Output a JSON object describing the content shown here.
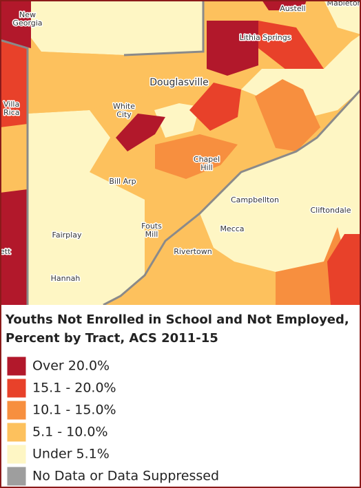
{
  "map": {
    "places": [
      {
        "lines": [
          "New",
          "Georgia"
        ]
      },
      {
        "lines": [
          "Austell"
        ]
      },
      {
        "lines": [
          "Mableton"
        ]
      },
      {
        "lines": [
          "Lithia Springs"
        ]
      },
      {
        "lines": [
          "Villa",
          "Rica"
        ]
      },
      {
        "lines": [
          "Douglasville"
        ]
      },
      {
        "lines": [
          "White",
          "City"
        ]
      },
      {
        "lines": [
          "Chapel",
          "Hill"
        ]
      },
      {
        "lines": [
          "Bill Arp"
        ]
      },
      {
        "lines": [
          "Campbellton"
        ]
      },
      {
        "lines": [
          "Cliftondale"
        ]
      },
      {
        "lines": [
          "Fouts",
          "Mill"
        ]
      },
      {
        "lines": [
          "Fairplay"
        ]
      },
      {
        "lines": [
          "Mecca"
        ]
      },
      {
        "lines": [
          "Rivertown"
        ]
      },
      {
        "lines": [
          "Hannah"
        ]
      },
      {
        "lines": [
          "ett"
        ]
      }
    ]
  },
  "legend": {
    "title": [
      "Youths Not Enrolled in School and Not Employed,",
      "Percent by Tract, ACS 2011-15"
    ],
    "items": [
      {
        "label": "Over 20.0%",
        "color": "#b2182b"
      },
      {
        "label": "15.1 - 20.0%",
        "color": "#e8412a"
      },
      {
        "label": "10.1 - 15.0%",
        "color": "#f78f3f"
      },
      {
        "label": "5.1 - 10.0%",
        "color": "#fdc15d"
      },
      {
        "label": "Under 5.1%",
        "color": "#fef6c4"
      },
      {
        "label": "No Data or Data Suppressed",
        "color": "#9e9e9e"
      }
    ]
  }
}
